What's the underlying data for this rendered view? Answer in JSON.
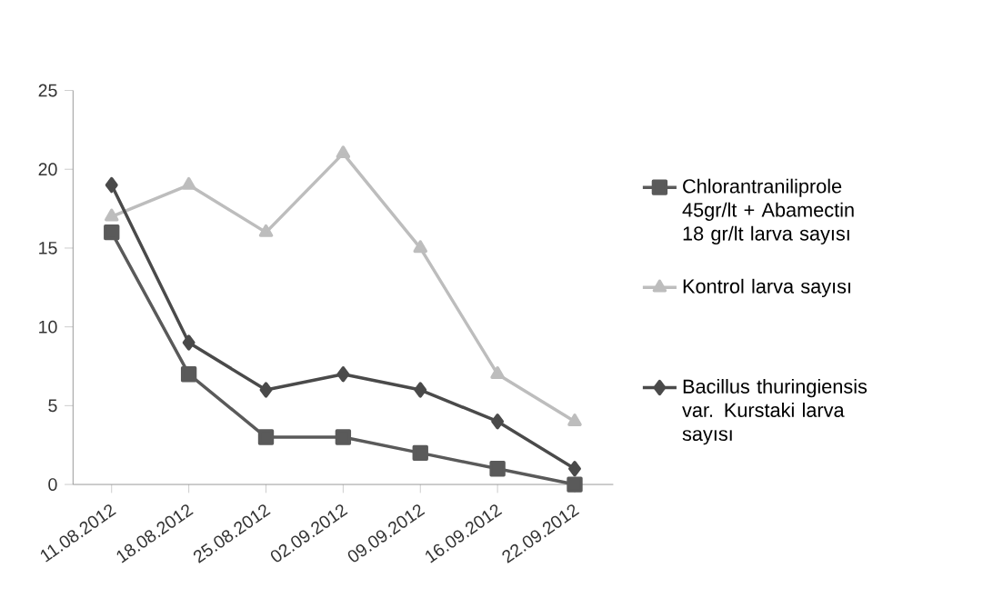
{
  "chart_data": {
    "type": "line",
    "categories": [
      "11.08.2012",
      "18.08.2012",
      "25.08.2012",
      "02.09.2012",
      "09.09.2012",
      "16.09.2012",
      "22.09.2012"
    ],
    "series": [
      {
        "name": "Chlorantraniliprole 45gr/lt + Abamectin 18 gr/lt larva sayısı",
        "color": "#5a5a5a",
        "marker": "square",
        "values": [
          16,
          7,
          3,
          3,
          2,
          1,
          0
        ]
      },
      {
        "name": "Kontrol larva sayısı",
        "color": "#bdbdbd",
        "marker": "triangle",
        "values": [
          17,
          19,
          16,
          21,
          15,
          7,
          4
        ]
      },
      {
        "name": "Bacillus thuringiensis var. Kurstaki larva sayısı",
        "color": "#4a4a4a",
        "marker": "diamond",
        "values": [
          19,
          9,
          6,
          7,
          6,
          4,
          1
        ]
      }
    ],
    "ylim": [
      0,
      25
    ],
    "yticks": [
      0,
      5,
      10,
      15,
      20,
      25
    ],
    "grid": false,
    "legend": "right",
    "line_style": "solid"
  }
}
